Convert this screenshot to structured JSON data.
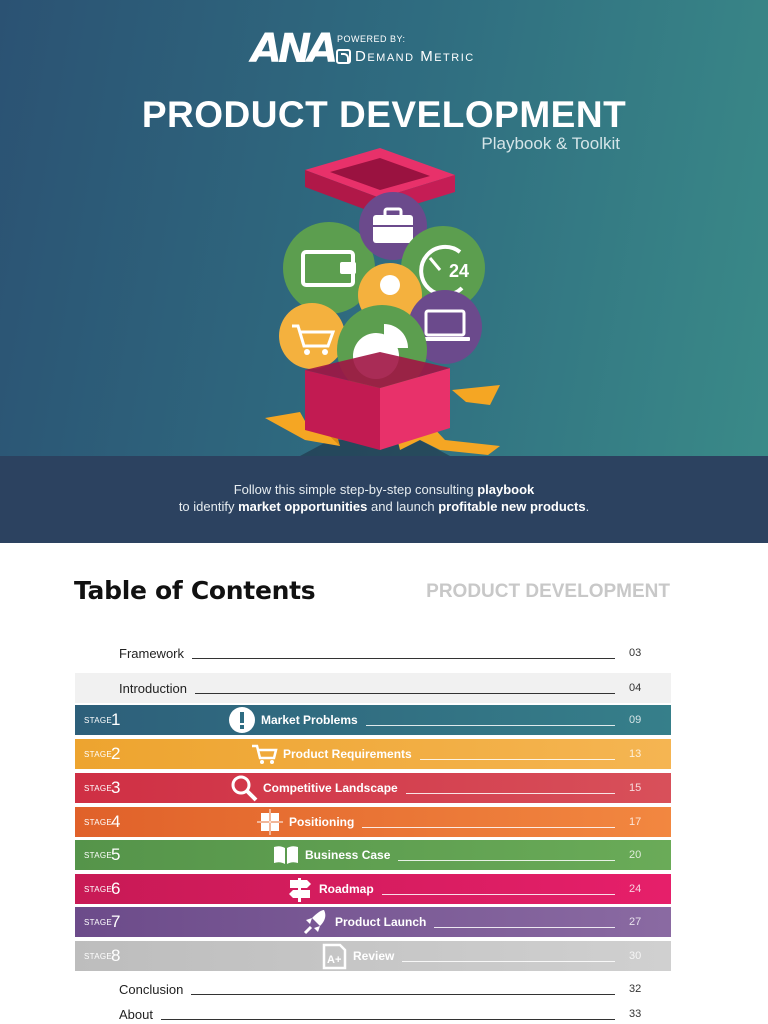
{
  "cover": {
    "logo_text": "ANA",
    "powered_by": "POWERED BY:",
    "partner": "Demand Metric",
    "title": "PRODUCT DEVELOPMENT",
    "subtitle": "Playbook & Toolkit",
    "band": {
      "line1_prefix": "Follow this simple step-by-step consulting ",
      "line1_bold": "playbook",
      "line2_prefix": "to identify ",
      "line2_bold1": "market opportunities",
      "line2_mid": " and launch ",
      "line2_bold2": "profitable new products",
      "line2_suffix": "."
    },
    "icons": [
      "briefcase-icon",
      "wallet-icon",
      "clock-24-icon",
      "person-icon",
      "laptop-icon",
      "cart-icon",
      "pie-chart-icon"
    ],
    "colors": {
      "box": "#d81f5b",
      "ribbon": "#f5a623",
      "green": "#5c9e4f",
      "purple": "#6b4a8c",
      "yellow": "#f4b13e"
    }
  },
  "toc": {
    "title": "Table of Contents",
    "kicker": "PRODUCT DEVELOPMENT",
    "stage_word": "STAGE",
    "framework": {
      "label": "Framework",
      "page": "03"
    },
    "introduction": {
      "label": "Introduction",
      "page": "04"
    },
    "stages": [
      {
        "n": "1",
        "label": "Market Problems",
        "page": "09",
        "icon": "exclamation-icon",
        "color": "#2e6c82"
      },
      {
        "n": "2",
        "label": "Product Requirements",
        "page": "13",
        "icon": "cart-icon",
        "color": "#eea534"
      },
      {
        "n": "3",
        "label": "Competitive Landscape",
        "page": "15",
        "icon": "magnifier-icon",
        "color": "#d43b4a"
      },
      {
        "n": "4",
        "label": "Positioning",
        "page": "17",
        "icon": "positioning-icon",
        "color": "#e86a2f"
      },
      {
        "n": "5",
        "label": "Business Case",
        "page": "20",
        "icon": "book-icon",
        "color": "#5c9e4f"
      },
      {
        "n": "6",
        "label": "Roadmap",
        "page": "24",
        "icon": "signpost-icon",
        "color": "#d81f5b"
      },
      {
        "n": "7",
        "label": "Product Launch",
        "page": "27",
        "icon": "rocket-icon",
        "color": "#7a5a95"
      },
      {
        "n": "8",
        "label": "Review",
        "page": "30",
        "icon": "grade-icon",
        "color": "#c3c3c3"
      }
    ],
    "conclusion": {
      "label": "Conclusion",
      "page": "32"
    },
    "about": {
      "label": "About",
      "page": "33"
    }
  }
}
